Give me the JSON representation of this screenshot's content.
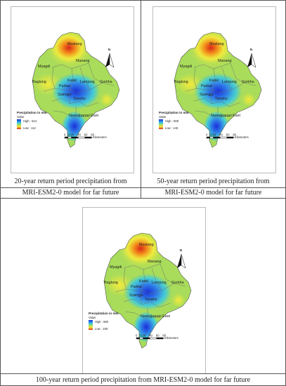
{
  "panels": [
    {
      "legend_title": "Precipitation in mm",
      "legend_value_label": "Value",
      "legend_high": "High : 513",
      "legend_low": "Low : 112",
      "caption_line1": "20-year return period precipitation from",
      "caption_line2": "MRI-ESM2-0 model for far future"
    },
    {
      "legend_title": "Precipitation in mm",
      "legend_value_label": "Value",
      "legend_high": "High : 608",
      "legend_low": "Low : 145",
      "caption_line1": "50-year return period precipitation from",
      "caption_line2": "MRI-ESM2-0 model for far future"
    },
    {
      "legend_title": "Precipitation in mm",
      "legend_value_label": "Value",
      "legend_high": "High : 680",
      "legend_low": "Low : 169",
      "caption_line1": "100-year return period precipitation from MRI-ESM2-0 model for far future"
    }
  ],
  "districts": {
    "mustang": "Mustang",
    "manang": "Manang",
    "myagdi": "Myagdi",
    "baglung": "Baglung",
    "kaski": "Kaski",
    "parbat": "Parbat",
    "lamjung": "Lamjung",
    "gorkha": "Gorkha",
    "syangja": "Syangja",
    "tanahu": "Tanahu",
    "nawalparasi": "Nawalparasi East"
  },
  "north_label": "N",
  "scale": {
    "ticks": [
      "0",
      "10",
      "20",
      "40",
      "60",
      "80"
    ],
    "unit": "Kilometers"
  },
  "colors": {
    "low_green": "#a8dc5a",
    "high_blue": "#1a2fd8",
    "mid_cyan": "#35c9e8",
    "yellow": "#f2ea3c",
    "orange": "#f28a1a",
    "red": "#d8281a"
  }
}
